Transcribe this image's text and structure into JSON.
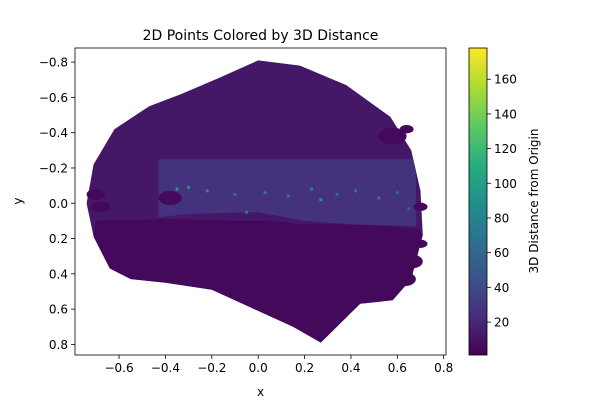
{
  "chart_data": {
    "type": "scatter",
    "title": "2D Points Colored by 3D Distance",
    "xlabel": "x",
    "ylabel": "y",
    "xlim": [
      -0.79,
      0.81
    ],
    "ylim": [
      -0.88,
      0.86
    ],
    "y_inverted": true,
    "xticks": [
      -0.6,
      -0.4,
      -0.2,
      0.0,
      0.2,
      0.4,
      0.6,
      0.8
    ],
    "xtick_labels": [
      "−0.6",
      "−0.4",
      "−0.2",
      "0.0",
      "0.2",
      "0.4",
      "0.6",
      "0.8"
    ],
    "yticks": [
      -0.8,
      -0.6,
      -0.4,
      -0.2,
      0.0,
      0.2,
      0.4,
      0.6,
      0.8
    ],
    "ytick_labels": [
      "−0.8",
      "−0.6",
      "−0.4",
      "−0.2",
      "0.0",
      "0.2",
      "0.4",
      "0.6",
      "0.8"
    ],
    "colorbar": {
      "label": "3D Distance from Origin",
      "colormap": "viridis",
      "range": [
        1,
        178
      ],
      "ticks": [
        20,
        40,
        60,
        80,
        100,
        120,
        140,
        160
      ],
      "tick_labels": [
        "20",
        "40",
        "60",
        "80",
        "100",
        "120",
        "140",
        "160"
      ]
    },
    "point_cloud_outline": [
      [
        -0.33,
        -0.62
      ],
      [
        -0.17,
        -0.71
      ],
      [
        0.0,
        -0.81
      ],
      [
        0.18,
        -0.78
      ],
      [
        0.38,
        -0.67
      ],
      [
        0.57,
        -0.49
      ],
      [
        0.66,
        -0.3
      ],
      [
        0.7,
        -0.07
      ],
      [
        0.71,
        0.18
      ],
      [
        0.66,
        0.43
      ],
      [
        0.58,
        0.55
      ],
      [
        0.44,
        0.57
      ],
      [
        0.27,
        0.79
      ],
      [
        0.15,
        0.7
      ],
      [
        -0.05,
        0.58
      ],
      [
        -0.2,
        0.49
      ],
      [
        -0.4,
        0.45
      ],
      [
        -0.55,
        0.43
      ],
      [
        -0.64,
        0.37
      ],
      [
        -0.71,
        0.19
      ],
      [
        -0.74,
        0.0
      ],
      [
        -0.71,
        -0.22
      ],
      [
        -0.62,
        -0.42
      ],
      [
        -0.47,
        -0.55
      ]
    ],
    "floor_region": [
      [
        -0.7,
        0.1
      ],
      [
        -0.46,
        0.09
      ],
      [
        -0.3,
        0.09
      ],
      [
        -0.1,
        0.1
      ],
      [
        0.05,
        0.1
      ],
      [
        0.2,
        0.12
      ],
      [
        0.4,
        0.12
      ],
      [
        0.58,
        0.13
      ],
      [
        0.7,
        0.15
      ],
      [
        0.71,
        0.18
      ],
      [
        0.66,
        0.43
      ],
      [
        0.58,
        0.55
      ],
      [
        0.44,
        0.57
      ],
      [
        0.27,
        0.79
      ],
      [
        0.15,
        0.7
      ],
      [
        -0.05,
        0.58
      ],
      [
        -0.2,
        0.49
      ],
      [
        -0.4,
        0.45
      ],
      [
        -0.55,
        0.43
      ],
      [
        -0.64,
        0.37
      ],
      [
        -0.71,
        0.19
      ]
    ],
    "far_region": [
      [
        -0.43,
        -0.25
      ],
      [
        0.68,
        -0.25
      ],
      [
        0.68,
        0.13
      ],
      [
        0.4,
        0.12
      ],
      [
        0.2,
        0.1
      ],
      [
        0.0,
        0.05
      ],
      [
        -0.3,
        0.06
      ],
      [
        -0.43,
        0.08
      ]
    ],
    "bright_points": [
      {
        "x": -0.35,
        "y": -0.08,
        "d": 100
      },
      {
        "x": -0.3,
        "y": -0.09,
        "d": 90
      },
      {
        "x": -0.22,
        "y": -0.07,
        "d": 85
      },
      {
        "x": -0.1,
        "y": -0.05,
        "d": 70
      },
      {
        "x": 0.03,
        "y": -0.06,
        "d": 75
      },
      {
        "x": 0.13,
        "y": -0.04,
        "d": 70
      },
      {
        "x": 0.23,
        "y": -0.08,
        "d": 80
      },
      {
        "x": 0.27,
        "y": -0.02,
        "d": 95
      },
      {
        "x": 0.34,
        "y": -0.05,
        "d": 65
      },
      {
        "x": 0.42,
        "y": -0.07,
        "d": 70
      },
      {
        "x": 0.52,
        "y": -0.03,
        "d": 75
      },
      {
        "x": 0.6,
        "y": -0.06,
        "d": 65
      },
      {
        "x": 0.65,
        "y": 0.03,
        "d": 60
      },
      {
        "x": -0.05,
        "y": 0.05,
        "d": 70
      }
    ],
    "near_clusters": [
      {
        "x": 0.58,
        "y": -0.38,
        "r": 0.06,
        "d": 5
      },
      {
        "x": 0.64,
        "y": -0.42,
        "r": 0.03,
        "d": 5
      },
      {
        "x": -0.7,
        "y": -0.05,
        "r": 0.04,
        "d": 5
      },
      {
        "x": -0.68,
        "y": 0.02,
        "r": 0.04,
        "d": 5
      },
      {
        "x": -0.38,
        "y": -0.03,
        "r": 0.05,
        "d": 5
      },
      {
        "x": 0.7,
        "y": 0.23,
        "r": 0.03,
        "d": 5
      },
      {
        "x": 0.66,
        "y": 0.33,
        "r": 0.05,
        "d": 5
      },
      {
        "x": 0.63,
        "y": 0.43,
        "r": 0.05,
        "d": 5
      },
      {
        "x": 0.7,
        "y": 0.02,
        "r": 0.03,
        "d": 5
      }
    ],
    "region_values": {
      "cloud": 12,
      "floor": 5,
      "far": 28
    }
  }
}
